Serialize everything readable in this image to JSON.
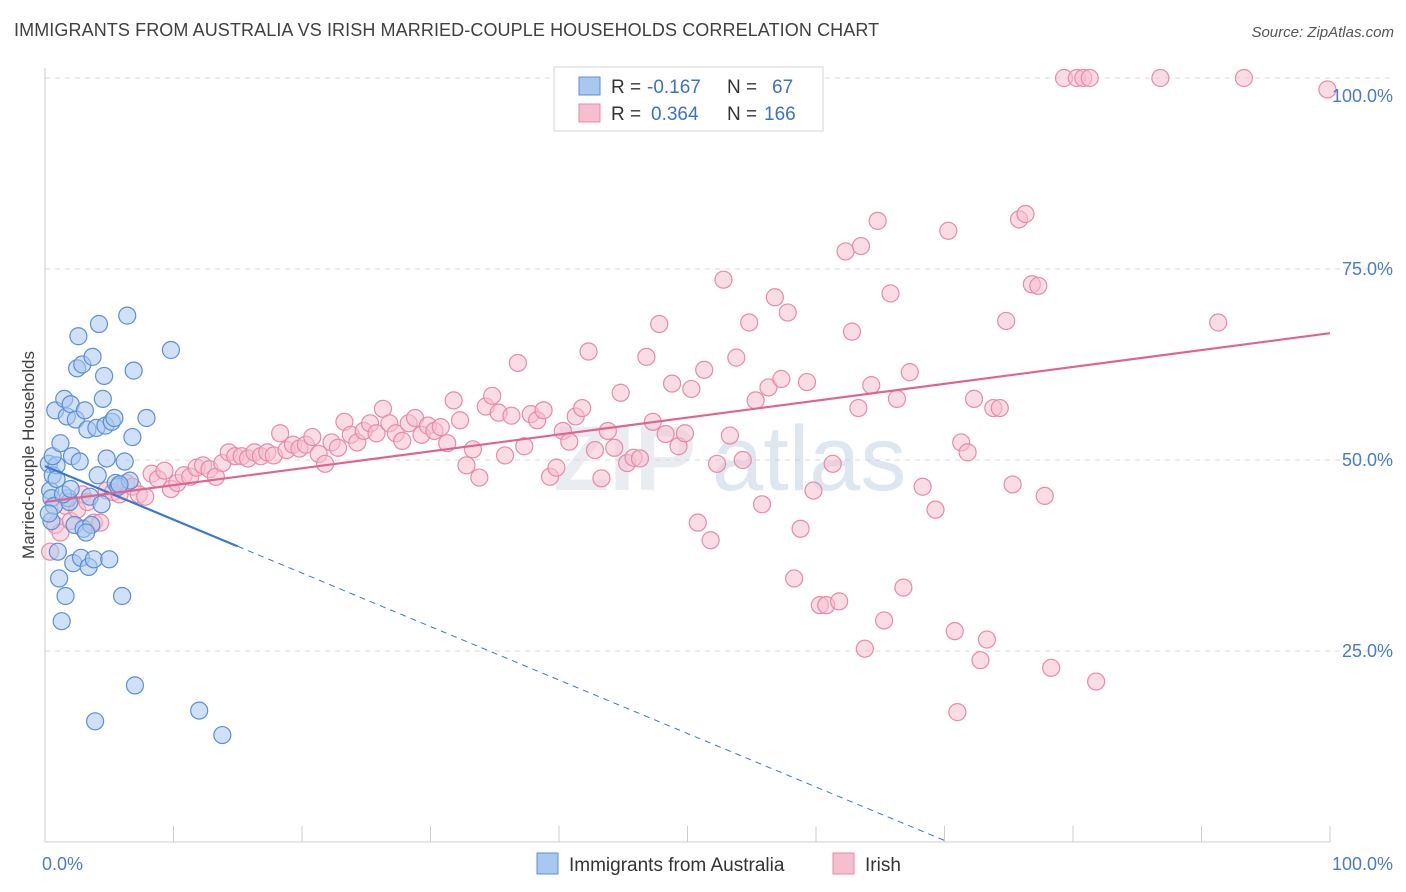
{
  "title": "IMMIGRANTS FROM AUSTRALIA VS IRISH MARRIED-COUPLE HOUSEHOLDS CORRELATION CHART",
  "source": "Source: ZipAtlas.com",
  "watermark": {
    "zip": "ZIP",
    "atlas": "atlas"
  },
  "colors": {
    "blue_fill": "#a9c8f0",
    "blue_stroke": "#5b8fd6",
    "blue_line": "#3a78d0",
    "pink_fill": "#f6bfd0",
    "pink_stroke": "#e98aa8",
    "pink_line": "#e0648f",
    "grid": "#d8d8d8",
    "tick_text": "#4a7cc9"
  },
  "legend": {
    "rows": [
      {
        "r_label": "R =",
        "r_value": "-0.167",
        "n_label": "N =",
        "n_value": "67"
      },
      {
        "r_label": "R =",
        "r_value": "0.364",
        "n_label": "N =",
        "n_value": "166"
      }
    ]
  },
  "chart_data": {
    "type": "scatter",
    "xlabel": "",
    "ylabel": "Married-couple Households",
    "xlim": [
      0,
      100
    ],
    "ylim": [
      0,
      100
    ],
    "x_tick_labels": [
      "0.0%",
      "100.0%"
    ],
    "y_tick_labels": [
      "25.0%",
      "50.0%",
      "75.0%",
      "100.0%"
    ],
    "y_tick_values": [
      25,
      50,
      75,
      100
    ],
    "grid": true,
    "legend_position": "bottom",
    "series": [
      {
        "name": "Immigrants from Australia",
        "trend": {
          "x0": 0,
          "y0": 49.2,
          "x1": 15,
          "y1": 38.7,
          "dashed_to_x": 70
        },
        "points": [
          [
            0.3,
            49.5
          ],
          [
            0.4,
            46.0
          ],
          [
            0.5,
            45.0
          ],
          [
            0.5,
            42.0
          ],
          [
            0.6,
            48.0
          ],
          [
            0.7,
            44.0
          ],
          [
            0.8,
            56.5
          ],
          [
            0.9,
            49.3
          ],
          [
            1.0,
            38.0
          ],
          [
            1.1,
            34.5
          ],
          [
            1.3,
            28.9
          ],
          [
            1.5,
            58.0
          ],
          [
            1.6,
            32.2
          ],
          [
            1.7,
            55.7
          ],
          [
            1.8,
            45.0
          ],
          [
            1.9,
            44.5
          ],
          [
            2.0,
            57.3
          ],
          [
            2.1,
            50.5
          ],
          [
            2.2,
            36.5
          ],
          [
            2.3,
            41.5
          ],
          [
            2.4,
            55.3
          ],
          [
            2.5,
            62.0
          ],
          [
            2.6,
            66.2
          ],
          [
            2.7,
            49.8
          ],
          [
            2.8,
            37.2
          ],
          [
            2.9,
            62.5
          ],
          [
            3.0,
            41.0
          ],
          [
            3.1,
            56.5
          ],
          [
            3.3,
            54.0
          ],
          [
            3.4,
            36.0
          ],
          [
            3.5,
            45.2
          ],
          [
            3.6,
            41.5
          ],
          [
            3.7,
            63.5
          ],
          [
            3.8,
            37.0
          ],
          [
            3.9,
            15.8
          ],
          [
            4.0,
            54.2
          ],
          [
            4.2,
            67.8
          ],
          [
            4.4,
            44.2
          ],
          [
            4.5,
            58.0
          ],
          [
            4.6,
            61.0
          ],
          [
            4.7,
            54.5
          ],
          [
            4.8,
            50.2
          ],
          [
            5.0,
            37.0
          ],
          [
            5.2,
            55.0
          ],
          [
            5.4,
            55.5
          ],
          [
            5.5,
            47.0
          ],
          [
            5.7,
            46.5
          ],
          [
            6.0,
            32.2
          ],
          [
            6.2,
            49.8
          ],
          [
            6.4,
            68.9
          ],
          [
            6.6,
            47.3
          ],
          [
            6.8,
            53.0
          ],
          [
            6.9,
            61.7
          ],
          [
            7.0,
            20.5
          ],
          [
            7.9,
            55.5
          ],
          [
            9.8,
            64.4
          ],
          [
            12.0,
            17.2
          ],
          [
            13.8,
            14.0
          ],
          [
            0.3,
            43.0
          ],
          [
            0.6,
            50.5
          ],
          [
            1.2,
            52.2
          ],
          [
            1.4,
            45.5
          ],
          [
            2.0,
            46.2
          ],
          [
            3.2,
            40.5
          ],
          [
            4.1,
            48.0
          ],
          [
            5.8,
            46.8
          ],
          [
            0.9,
            47.5
          ]
        ]
      },
      {
        "name": "Irish",
        "trend": {
          "x0": 0,
          "y0": 44.5,
          "x1": 100,
          "y1": 66.6
        },
        "points": [
          [
            0.4,
            38.0
          ],
          [
            0.8,
            41.5
          ],
          [
            1.2,
            40.5
          ],
          [
            1.6,
            44.0
          ],
          [
            2.0,
            42.0
          ],
          [
            2.5,
            43.5
          ],
          [
            2.9,
            45.5
          ],
          [
            3.3,
            44.5
          ],
          [
            3.8,
            41.8
          ],
          [
            4.3,
            41.8
          ],
          [
            4.8,
            46.0
          ],
          [
            5.3,
            45.8
          ],
          [
            5.8,
            45.5
          ],
          [
            6.3,
            47.0
          ],
          [
            6.8,
            46.5
          ],
          [
            7.3,
            45.5
          ],
          [
            7.8,
            45.2
          ],
          [
            8.3,
            48.2
          ],
          [
            8.8,
            47.5
          ],
          [
            9.3,
            48.6
          ],
          [
            9.8,
            46.2
          ],
          [
            10.3,
            47.0
          ],
          [
            10.8,
            48.0
          ],
          [
            11.3,
            47.8
          ],
          [
            11.8,
            49.0
          ],
          [
            12.3,
            49.3
          ],
          [
            12.8,
            48.8
          ],
          [
            13.3,
            47.8
          ],
          [
            13.8,
            49.6
          ],
          [
            14.3,
            51.0
          ],
          [
            14.8,
            50.5
          ],
          [
            15.3,
            50.5
          ],
          [
            15.8,
            50.2
          ],
          [
            16.3,
            51.0
          ],
          [
            16.8,
            50.5
          ],
          [
            17.3,
            51.0
          ],
          [
            17.8,
            50.6
          ],
          [
            18.3,
            53.5
          ],
          [
            18.8,
            51.3
          ],
          [
            19.3,
            52.0
          ],
          [
            19.8,
            51.5
          ],
          [
            20.3,
            52.0
          ],
          [
            20.8,
            53.0
          ],
          [
            21.3,
            50.8
          ],
          [
            21.8,
            49.5
          ],
          [
            22.3,
            52.3
          ],
          [
            22.8,
            51.6
          ],
          [
            23.3,
            55.0
          ],
          [
            23.8,
            53.3
          ],
          [
            24.3,
            52.3
          ],
          [
            24.8,
            53.8
          ],
          [
            25.3,
            54.8
          ],
          [
            25.8,
            53.5
          ],
          [
            26.3,
            56.7
          ],
          [
            26.8,
            54.8
          ],
          [
            27.3,
            53.5
          ],
          [
            27.8,
            52.5
          ],
          [
            28.3,
            54.8
          ],
          [
            28.8,
            55.5
          ],
          [
            29.3,
            53.3
          ],
          [
            29.8,
            54.5
          ],
          [
            30.3,
            53.8
          ],
          [
            30.8,
            54.3
          ],
          [
            31.3,
            52.2
          ],
          [
            31.8,
            57.8
          ],
          [
            32.3,
            55.2
          ],
          [
            32.8,
            49.3
          ],
          [
            33.3,
            51.4
          ],
          [
            33.8,
            47.7
          ],
          [
            34.3,
            57.0
          ],
          [
            34.8,
            58.4
          ],
          [
            35.3,
            56.2
          ],
          [
            35.8,
            50.6
          ],
          [
            36.3,
            55.8
          ],
          [
            36.8,
            62.7
          ],
          [
            37.3,
            51.8
          ],
          [
            37.8,
            56.0
          ],
          [
            38.3,
            55.2
          ],
          [
            38.8,
            56.5
          ],
          [
            39.3,
            47.8
          ],
          [
            39.8,
            49.0
          ],
          [
            40.3,
            53.8
          ],
          [
            40.8,
            52.4
          ],
          [
            41.3,
            55.7
          ],
          [
            41.8,
            56.8
          ],
          [
            42.3,
            64.2
          ],
          [
            42.8,
            51.3
          ],
          [
            43.3,
            47.6
          ],
          [
            43.8,
            53.8
          ],
          [
            44.3,
            51.6
          ],
          [
            44.8,
            58.8
          ],
          [
            45.3,
            49.6
          ],
          [
            45.8,
            50.3
          ],
          [
            46.3,
            50.2
          ],
          [
            46.8,
            63.5
          ],
          [
            47.3,
            55.0
          ],
          [
            47.8,
            67.8
          ],
          [
            48.3,
            53.4
          ],
          [
            48.8,
            60.0
          ],
          [
            49.3,
            51.8
          ],
          [
            49.8,
            53.5
          ],
          [
            50.3,
            59.3
          ],
          [
            50.8,
            41.8
          ],
          [
            51.3,
            61.8
          ],
          [
            51.8,
            39.5
          ],
          [
            52.3,
            49.5
          ],
          [
            52.8,
            73.6
          ],
          [
            53.3,
            53.2
          ],
          [
            53.8,
            63.4
          ],
          [
            54.3,
            50.0
          ],
          [
            54.8,
            68.0
          ],
          [
            55.3,
            57.8
          ],
          [
            55.8,
            44.2
          ],
          [
            56.3,
            59.5
          ],
          [
            56.8,
            71.3
          ],
          [
            57.3,
            60.6
          ],
          [
            57.8,
            69.3
          ],
          [
            58.3,
            34.5
          ],
          [
            58.8,
            41.0
          ],
          [
            59.3,
            60.2
          ],
          [
            59.8,
            46.0
          ],
          [
            60.3,
            31.0
          ],
          [
            60.8,
            31.0
          ],
          [
            61.3,
            49.5
          ],
          [
            61.8,
            31.5
          ],
          [
            62.3,
            77.3
          ],
          [
            62.8,
            66.8
          ],
          [
            63.3,
            56.8
          ],
          [
            63.8,
            25.3
          ],
          [
            64.3,
            59.8
          ],
          [
            64.8,
            81.3
          ],
          [
            65.3,
            29.0
          ],
          [
            65.8,
            71.8
          ],
          [
            66.3,
            58.0
          ],
          [
            66.8,
            33.3
          ],
          [
            67.3,
            61.5
          ],
          [
            68.3,
            46.5
          ],
          [
            69.3,
            43.5
          ],
          [
            70.3,
            80.0
          ],
          [
            70.8,
            27.6
          ],
          [
            71.3,
            52.3
          ],
          [
            71.8,
            51.0
          ],
          [
            72.3,
            58.0
          ],
          [
            72.8,
            23.8
          ],
          [
            73.3,
            26.5
          ],
          [
            73.8,
            56.8
          ],
          [
            74.3,
            56.8
          ],
          [
            74.8,
            68.2
          ],
          [
            75.3,
            46.8
          ],
          [
            75.8,
            81.5
          ],
          [
            76.3,
            82.2
          ],
          [
            76.8,
            73.0
          ],
          [
            77.3,
            72.8
          ],
          [
            77.8,
            45.3
          ],
          [
            78.3,
            22.8
          ],
          [
            79.3,
            100.0
          ],
          [
            80.3,
            100.0
          ],
          [
            80.8,
            100.0
          ],
          [
            81.3,
            100.0
          ],
          [
            81.8,
            21.0
          ],
          [
            86.8,
            100.0
          ],
          [
            91.3,
            68.0
          ],
          [
            93.3,
            100.0
          ],
          [
            99.8,
            98.5
          ],
          [
            63.5,
            78.0
          ],
          [
            71.0,
            17.0
          ]
        ]
      }
    ]
  },
  "bottom_legend": [
    {
      "label": "Immigrants from Australia"
    },
    {
      "label": "Irish"
    }
  ]
}
